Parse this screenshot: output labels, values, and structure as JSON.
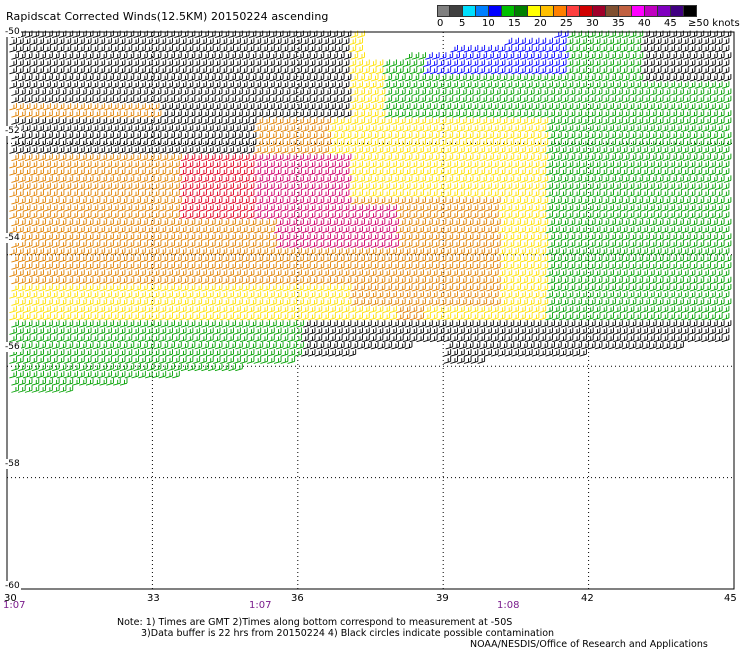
{
  "title": "Rapidscat Corrected Winds(12.5KM) 20150224 ascending",
  "legend": {
    "colors": [
      "#808080",
      "#404040",
      "#00e0ff",
      "#0080ff",
      "#0000ff",
      "#00c000",
      "#008000",
      "#ffff00",
      "#ffc000",
      "#ff8000",
      "#ff4040",
      "#d00000",
      "#a0002a",
      "#805030",
      "#c06040",
      "#ff00ff",
      "#c000c0",
      "#8000c0",
      "#400080",
      "#000000"
    ],
    "labels": [
      "0",
      "5",
      "10",
      "15",
      "20",
      "25",
      "30",
      "35",
      "40",
      "45",
      "≥50 knots"
    ]
  },
  "y_labels": [
    "-50",
    "-52",
    "-54",
    "-56",
    "-58",
    "-60"
  ],
  "x_labels": [
    "30",
    "33",
    "36",
    "39",
    "42",
    "45"
  ],
  "times": [
    "1:07",
    "1:07",
    "1:08"
  ],
  "notes": {
    "line1": "Note: 1) Times are GMT 2)Times along bottom correspond to measurement at -50S",
    "line2": "3)Data buffer is 22 hrs from 20150224 4) Black circles indicate possible contamination",
    "line3": "NOAA/NESDIS/Office of Research and Applications"
  },
  "wind_field": {
    "speed_colors": {
      "black": "#000000",
      "green": "#00a000",
      "blue": "#0000ff",
      "yellow": "#ffe000",
      "orange": "#e08000",
      "red": "#e00020",
      "crimson": "#d0006a"
    },
    "swath_lat_range": [
      -50,
      -56.6
    ],
    "swath_lon_range": [
      30,
      45
    ]
  }
}
